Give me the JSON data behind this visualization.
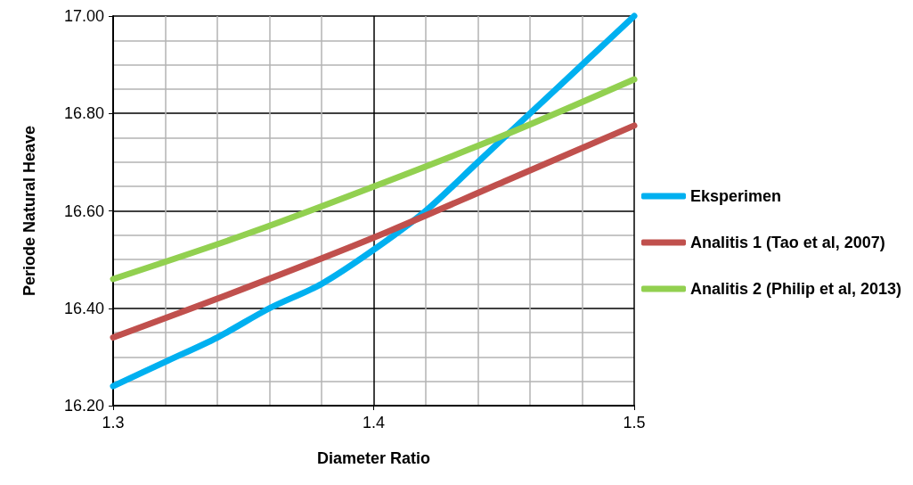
{
  "chart_data": {
    "type": "line",
    "xlabel": "Diameter Ratio",
    "ylabel": "Periode Natural Heave",
    "xlim": [
      1.3,
      1.5
    ],
    "xticks": [
      1.3,
      1.4,
      1.5
    ],
    "ylim": [
      16.2,
      17
    ],
    "yticks": [
      {
        "value": 16.2,
        "label": "16.20"
      },
      {
        "value": 16.4,
        "label": "16.40"
      },
      {
        "value": 16.6,
        "label": "16.60"
      },
      {
        "value": 16.8,
        "label": "16.80"
      },
      {
        "value": 17,
        "label": "17.00"
      }
    ],
    "grid": true,
    "legend": "right",
    "marker": "none",
    "line_style": "solid",
    "series": [
      {
        "name": "Eksperimen",
        "color": "#00b0f0",
        "x": [
          1.3,
          1.32,
          1.34,
          1.36,
          1.38,
          1.4,
          1.42,
          1.44,
          1.46,
          1.48,
          1.5
        ],
        "values": [
          16.24,
          16.29,
          16.34,
          16.4,
          16.45,
          16.52,
          16.6,
          16.7,
          16.8,
          16.9,
          17
        ]
      },
      {
        "name": "Analitis 1 (Tao et al, 2007)",
        "color": "#c0504d",
        "x": [
          1.3,
          1.35,
          1.4,
          1.45,
          1.5
        ],
        "values": [
          16.34,
          16.44,
          16.545,
          16.66,
          16.775
        ]
      },
      {
        "name": "Analitis 2 (Philip et al, 2013)",
        "color": "#92d050",
        "x": [
          1.3,
          1.35,
          1.4,
          1.45,
          1.5
        ],
        "values": [
          16.46,
          16.55,
          16.65,
          16.755,
          16.87
        ]
      }
    ]
  }
}
